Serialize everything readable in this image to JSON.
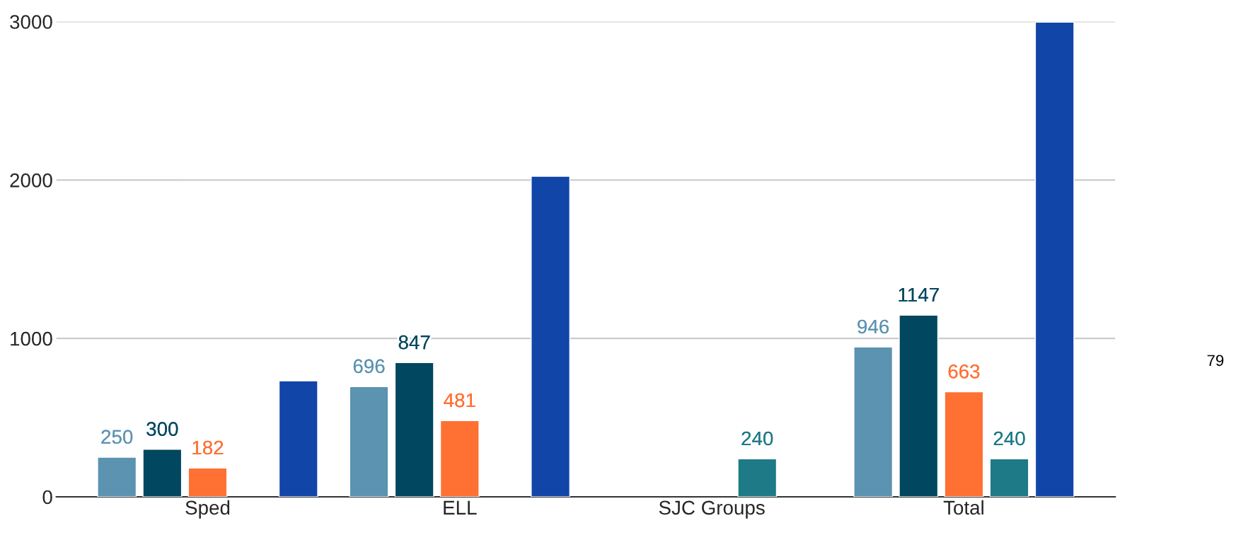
{
  "chart_data": {
    "type": "bar",
    "categories": [
      "Sped",
      "ELL",
      "SJC Groups",
      "Total"
    ],
    "series": [
      {
        "color": "#5b93b0",
        "values": [
          250,
          696,
          null,
          946
        ],
        "value_labels": [
          "250",
          "696",
          null,
          "946"
        ]
      },
      {
        "color": "#00475f",
        "values": [
          300,
          847,
          null,
          1147
        ],
        "value_labels": [
          "300",
          "847",
          null,
          "1147"
        ]
      },
      {
        "color": "#ff7033",
        "values": [
          182,
          481,
          null,
          663
        ],
        "value_labels": [
          "182",
          "481",
          null,
          "663"
        ]
      },
      {
        "color": "#1d7a86",
        "values": [
          null,
          null,
          240,
          240
        ],
        "value_labels": [
          null,
          null,
          "240",
          "240"
        ]
      },
      {
        "color": "#1145a8",
        "values": [
          732,
          2024,
          null,
          2996
        ]
      }
    ],
    "ylim": [
      0,
      3000
    ],
    "yticks": [
      0,
      1000,
      2000,
      3000
    ],
    "grid": "y",
    "annotations": [
      "79"
    ]
  }
}
